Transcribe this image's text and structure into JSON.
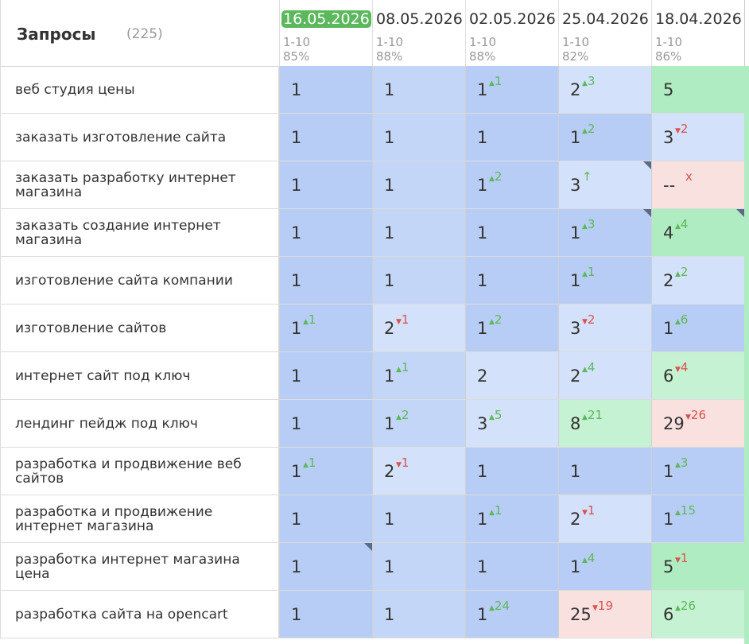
{
  "header": {
    "title": "Запросы",
    "count": "(225)",
    "dates": [
      {
        "date": "16.05.2026",
        "range": "1-10",
        "pct": "85%"
      },
      {
        "date": "08.05.2026",
        "range": "1-10",
        "pct": "88%"
      },
      {
        "date": "02.05.2026",
        "range": "1-10",
        "pct": "88%"
      },
      {
        "date": "25.04.2026",
        "range": "1-10",
        "pct": "82%"
      },
      {
        "date": "18.04.2026",
        "range": "1-10",
        "pct": "86%"
      }
    ]
  },
  "colors": {
    "blue_dark": "#b8cdf5",
    "blue_mid": "#c3d6f7",
    "blue_light": "#d3e1fb",
    "green": "#b0ecc1",
    "green_light": "#c5f2d2",
    "pink": "#f9e1e0",
    "current_date_bg": "#5cb85c",
    "delta_up": "#5cb85c",
    "delta_down": "#d9534f"
  },
  "rows": [
    {
      "query": "веб студия цены",
      "cells": [
        {
          "v": "1",
          "d": "",
          "dir": "",
          "bg": "blue_dark"
        },
        {
          "v": "1",
          "d": "",
          "dir": "",
          "bg": "blue_mid"
        },
        {
          "v": "1",
          "d": "1",
          "dir": "up",
          "bg": "blue_dark"
        },
        {
          "v": "2",
          "d": "3",
          "dir": "up",
          "bg": "blue_light"
        },
        {
          "v": "5",
          "d": "",
          "dir": "",
          "bg": "green"
        }
      ]
    },
    {
      "query": "заказать изготовление сайта",
      "cells": [
        {
          "v": "1",
          "d": "",
          "dir": "",
          "bg": "blue_dark"
        },
        {
          "v": "1",
          "d": "",
          "dir": "",
          "bg": "blue_mid"
        },
        {
          "v": "1",
          "d": "",
          "dir": "",
          "bg": "blue_dark"
        },
        {
          "v": "1",
          "d": "2",
          "dir": "up",
          "bg": "blue_dark"
        },
        {
          "v": "3",
          "d": "2",
          "dir": "down",
          "bg": "blue_light"
        }
      ]
    },
    {
      "query": "заказать разработку интернет магазина",
      "cells": [
        {
          "v": "1",
          "d": "",
          "dir": "",
          "bg": "blue_dark"
        },
        {
          "v": "1",
          "d": "",
          "dir": "",
          "bg": "blue_mid"
        },
        {
          "v": "1",
          "d": "2",
          "dir": "up",
          "bg": "blue_dark"
        },
        {
          "v": "3",
          "d": "↑",
          "dir": "up",
          "bg": "blue_light",
          "fold": true
        },
        {
          "v": "--",
          "d": "x",
          "dir": "down",
          "bg": "pink"
        }
      ]
    },
    {
      "query": "заказать создание интернет магазина",
      "cells": [
        {
          "v": "1",
          "d": "",
          "dir": "",
          "bg": "blue_dark"
        },
        {
          "v": "1",
          "d": "",
          "dir": "",
          "bg": "blue_mid"
        },
        {
          "v": "1",
          "d": "",
          "dir": "",
          "bg": "blue_dark"
        },
        {
          "v": "1",
          "d": "3",
          "dir": "up",
          "bg": "blue_dark",
          "fold": true
        },
        {
          "v": "4",
          "d": "4",
          "dir": "up",
          "bg": "green",
          "fold": true
        }
      ]
    },
    {
      "query": "изготовление сайта компании",
      "cells": [
        {
          "v": "1",
          "d": "",
          "dir": "",
          "bg": "blue_dark"
        },
        {
          "v": "1",
          "d": "",
          "dir": "",
          "bg": "blue_mid"
        },
        {
          "v": "1",
          "d": "",
          "dir": "",
          "bg": "blue_dark"
        },
        {
          "v": "1",
          "d": "1",
          "dir": "up",
          "bg": "blue_dark"
        },
        {
          "v": "2",
          "d": "2",
          "dir": "up",
          "bg": "blue_light"
        }
      ]
    },
    {
      "query": "изготовление сайтов",
      "cells": [
        {
          "v": "1",
          "d": "1",
          "dir": "up",
          "bg": "blue_dark"
        },
        {
          "v": "2",
          "d": "1",
          "dir": "down",
          "bg": "blue_light"
        },
        {
          "v": "1",
          "d": "2",
          "dir": "up",
          "bg": "blue_dark"
        },
        {
          "v": "3",
          "d": "2",
          "dir": "down",
          "bg": "blue_light"
        },
        {
          "v": "1",
          "d": "6",
          "dir": "up",
          "bg": "blue_dark"
        }
      ]
    },
    {
      "query": "интернет сайт под ключ",
      "cells": [
        {
          "v": "1",
          "d": "",
          "dir": "",
          "bg": "blue_dark"
        },
        {
          "v": "1",
          "d": "1",
          "dir": "up",
          "bg": "blue_mid"
        },
        {
          "v": "2",
          "d": "",
          "dir": "",
          "bg": "blue_light"
        },
        {
          "v": "2",
          "d": "4",
          "dir": "up",
          "bg": "blue_light"
        },
        {
          "v": "6",
          "d": "4",
          "dir": "down",
          "bg": "green_light"
        }
      ]
    },
    {
      "query": "лендинг пейдж под ключ",
      "cells": [
        {
          "v": "1",
          "d": "",
          "dir": "",
          "bg": "blue_dark"
        },
        {
          "v": "1",
          "d": "2",
          "dir": "up",
          "bg": "blue_mid"
        },
        {
          "v": "3",
          "d": "5",
          "dir": "up",
          "bg": "blue_light"
        },
        {
          "v": "8",
          "d": "21",
          "dir": "up",
          "bg": "green_light"
        },
        {
          "v": "29",
          "d": "26",
          "dir": "down",
          "bg": "pink"
        }
      ]
    },
    {
      "query": "разработка и продвижение веб сайтов",
      "cells": [
        {
          "v": "1",
          "d": "1",
          "dir": "up",
          "bg": "blue_dark"
        },
        {
          "v": "2",
          "d": "1",
          "dir": "down",
          "bg": "blue_light"
        },
        {
          "v": "1",
          "d": "",
          "dir": "",
          "bg": "blue_dark"
        },
        {
          "v": "1",
          "d": "",
          "dir": "",
          "bg": "blue_dark"
        },
        {
          "v": "1",
          "d": "3",
          "dir": "up",
          "bg": "blue_dark"
        }
      ]
    },
    {
      "query": "разработка и продвижение интернет магазина",
      "cells": [
        {
          "v": "1",
          "d": "",
          "dir": "",
          "bg": "blue_dark"
        },
        {
          "v": "1",
          "d": "",
          "dir": "",
          "bg": "blue_mid"
        },
        {
          "v": "1",
          "d": "1",
          "dir": "up",
          "bg": "blue_dark"
        },
        {
          "v": "2",
          "d": "1",
          "dir": "down",
          "bg": "blue_light"
        },
        {
          "v": "1",
          "d": "15",
          "dir": "up",
          "bg": "blue_dark"
        }
      ]
    },
    {
      "query": "разработка интернет магазина цена",
      "cells": [
        {
          "v": "1",
          "d": "",
          "dir": "",
          "bg": "blue_dark",
          "fold": true
        },
        {
          "v": "1",
          "d": "",
          "dir": "",
          "bg": "blue_mid"
        },
        {
          "v": "1",
          "d": "",
          "dir": "",
          "bg": "blue_dark"
        },
        {
          "v": "1",
          "d": "4",
          "dir": "up",
          "bg": "blue_dark"
        },
        {
          "v": "5",
          "d": "1",
          "dir": "down",
          "bg": "green"
        }
      ]
    },
    {
      "query": "разработка сайта на opencart",
      "cells": [
        {
          "v": "1",
          "d": "",
          "dir": "",
          "bg": "blue_dark"
        },
        {
          "v": "1",
          "d": "",
          "dir": "",
          "bg": "blue_mid"
        },
        {
          "v": "1",
          "d": "24",
          "dir": "up",
          "bg": "blue_dark"
        },
        {
          "v": "25",
          "d": "19",
          "dir": "down",
          "bg": "pink"
        },
        {
          "v": "6",
          "d": "26",
          "dir": "up",
          "bg": "green_light"
        }
      ]
    }
  ]
}
